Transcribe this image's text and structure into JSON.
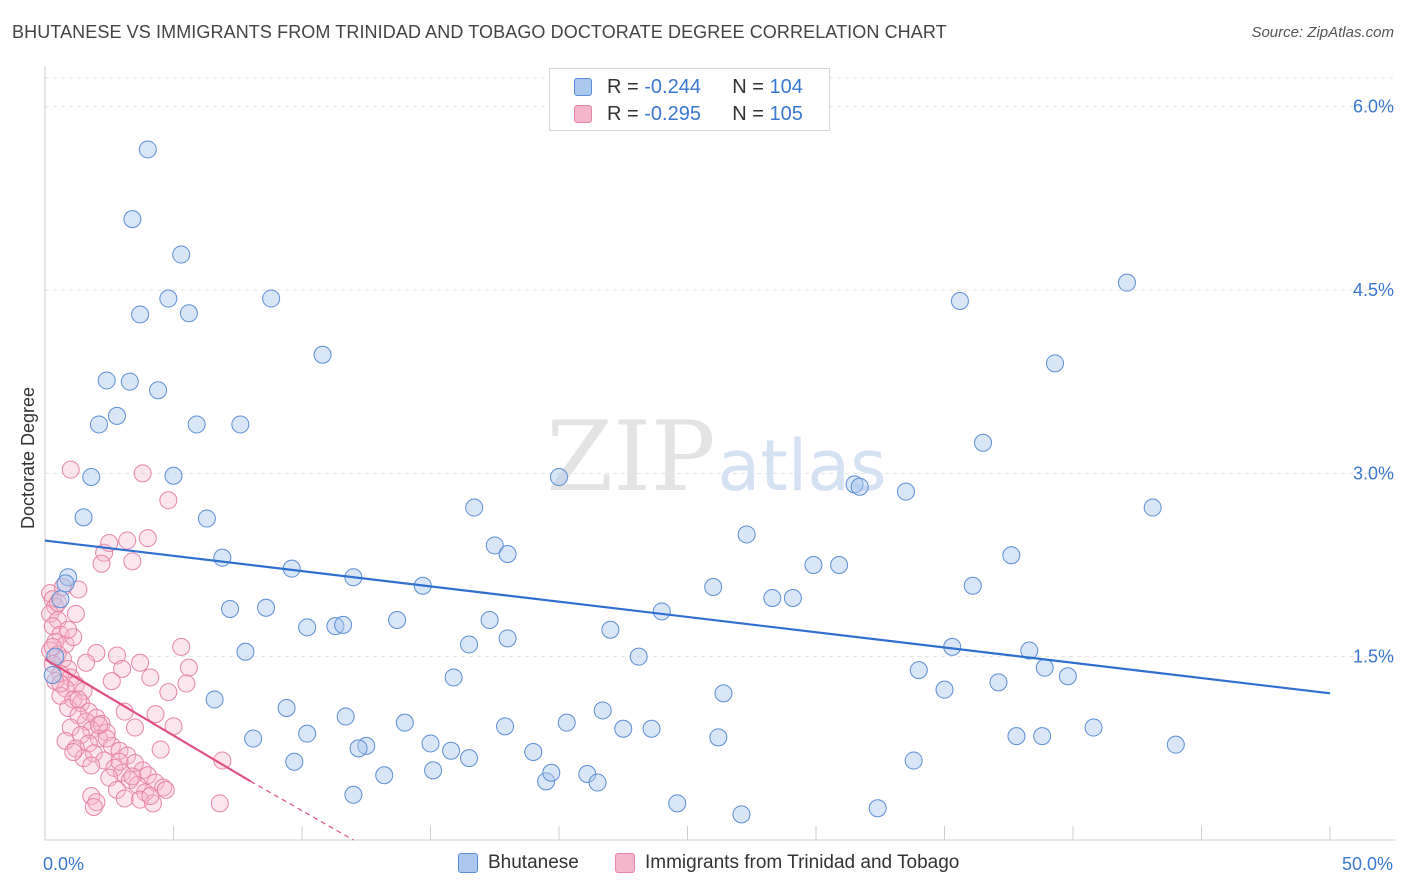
{
  "title": "BHUTANESE VS IMMIGRANTS FROM TRINIDAD AND TOBAGO DOCTORATE DEGREE CORRELATION CHART",
  "source": "Source: ZipAtlas.com",
  "watermark": {
    "zip": "ZIP",
    "atlas": "atlas"
  },
  "legend_top": {
    "rows": [
      {
        "r_label": "R =",
        "r_value": "-0.244",
        "n_label": "N =",
        "n_value": "104"
      },
      {
        "r_label": "R =",
        "r_value": "-0.295",
        "n_label": "N =",
        "n_value": "105"
      }
    ]
  },
  "legend_bottom": {
    "items": [
      "Bhutanese",
      "Immigrants from Trinidad and Tobago"
    ]
  },
  "colors": {
    "blue_fill": "#aac8ee",
    "blue_stroke": "#5b8fd4",
    "blue_line": "#2f6fcf",
    "pink_fill": "#f5b6cb",
    "pink_stroke": "#e785a8",
    "pink_line": "#e0517f",
    "axis_text_blue": "#3a78d0",
    "grid": "#e3e3e3"
  },
  "chart_data": {
    "type": "scatter",
    "title": "BHUTANESE VS IMMIGRANTS FROM TRINIDAD AND TOBAGO DOCTORATE DEGREE CORRELATION CHART",
    "xlabel": "",
    "ylabel": "Doctorate Degree",
    "xlim": [
      0,
      50
    ],
    "ylim": [
      0,
      6.3
    ],
    "x_tick_labels": [
      "0.0%",
      "50.0%"
    ],
    "y_ticks": [
      1.5,
      3.0,
      4.5,
      6.0
    ],
    "y_tick_labels": [
      "1.5%",
      "3.0%",
      "4.5%",
      "6.0%"
    ],
    "series": [
      {
        "name": "Bhutanese",
        "r": -0.244,
        "n": 104,
        "trend": {
          "x0": 0,
          "y0": 2.45,
          "x1": 50,
          "y1": 1.2
        },
        "points": [
          [
            4.0,
            5.65
          ],
          [
            3.4,
            5.08
          ],
          [
            5.3,
            4.79
          ],
          [
            4.8,
            4.43
          ],
          [
            3.7,
            4.3
          ],
          [
            5.6,
            4.31
          ],
          [
            8.8,
            4.43
          ],
          [
            10.8,
            3.97
          ],
          [
            3.3,
            3.75
          ],
          [
            2.4,
            3.76
          ],
          [
            4.4,
            3.68
          ],
          [
            2.8,
            3.47
          ],
          [
            2.1,
            3.4
          ],
          [
            5.9,
            3.4
          ],
          [
            7.6,
            3.4
          ],
          [
            1.8,
            2.97
          ],
          [
            5.0,
            2.98
          ],
          [
            1.5,
            2.64
          ],
          [
            6.3,
            2.63
          ],
          [
            0.9,
            2.15
          ],
          [
            6.9,
            2.31
          ],
          [
            9.6,
            2.22
          ],
          [
            12.0,
            2.15
          ],
          [
            7.2,
            1.89
          ],
          [
            8.6,
            1.9
          ],
          [
            10.2,
            1.74
          ],
          [
            11.3,
            1.75
          ],
          [
            11.6,
            1.76
          ],
          [
            13.7,
            1.8
          ],
          [
            14.7,
            2.08
          ],
          [
            16.7,
            2.72
          ],
          [
            17.5,
            2.41
          ],
          [
            18.0,
            2.34
          ],
          [
            17.3,
            1.8
          ],
          [
            16.5,
            1.6
          ],
          [
            18.0,
            1.65
          ],
          [
            20.0,
            2.97
          ],
          [
            22.0,
            1.72
          ],
          [
            23.1,
            1.5
          ],
          [
            24.0,
            1.87
          ],
          [
            7.8,
            1.54
          ],
          [
            15.9,
            1.33
          ],
          [
            6.6,
            1.15
          ],
          [
            9.4,
            1.08
          ],
          [
            11.7,
            1.01
          ],
          [
            14.0,
            0.96
          ],
          [
            12.5,
            0.77
          ],
          [
            12.2,
            0.75
          ],
          [
            13.2,
            0.53
          ],
          [
            12.0,
            0.37
          ],
          [
            10.2,
            0.87
          ],
          [
            9.7,
            0.64
          ],
          [
            8.1,
            0.83
          ],
          [
            15.1,
            0.57
          ],
          [
            15.0,
            0.79
          ],
          [
            15.8,
            0.73
          ],
          [
            16.5,
            0.67
          ],
          [
            17.9,
            0.93
          ],
          [
            19.0,
            0.72
          ],
          [
            19.5,
            0.48
          ],
          [
            19.7,
            0.55
          ],
          [
            20.3,
            0.96
          ],
          [
            21.1,
            0.54
          ],
          [
            21.5,
            0.47
          ],
          [
            21.7,
            1.06
          ],
          [
            22.5,
            0.91
          ],
          [
            23.6,
            0.91
          ],
          [
            24.6,
            0.3
          ],
          [
            26.2,
            0.84
          ],
          [
            27.1,
            0.21
          ],
          [
            26.4,
            1.2
          ],
          [
            27.3,
            2.5
          ],
          [
            28.3,
            1.98
          ],
          [
            29.1,
            1.98
          ],
          [
            29.9,
            2.25
          ],
          [
            30.9,
            2.25
          ],
          [
            26.0,
            2.07
          ],
          [
            31.5,
            2.91
          ],
          [
            31.7,
            2.89
          ],
          [
            33.5,
            2.85
          ],
          [
            32.4,
            0.26
          ],
          [
            33.8,
            0.65
          ],
          [
            34.0,
            1.39
          ],
          [
            35.0,
            1.23
          ],
          [
            35.3,
            1.58
          ],
          [
            35.6,
            4.41
          ],
          [
            36.1,
            2.08
          ],
          [
            36.5,
            3.25
          ],
          [
            37.1,
            1.29
          ],
          [
            37.8,
            0.85
          ],
          [
            37.6,
            2.33
          ],
          [
            38.8,
            0.85
          ],
          [
            38.3,
            1.55
          ],
          [
            38.9,
            1.41
          ],
          [
            39.3,
            3.9
          ],
          [
            39.8,
            1.34
          ],
          [
            40.8,
            0.92
          ],
          [
            42.1,
            4.56
          ],
          [
            43.1,
            2.72
          ],
          [
            44.0,
            0.78
          ],
          [
            0.6,
            1.97
          ],
          [
            0.3,
            1.35
          ],
          [
            0.4,
            1.5
          ],
          [
            0.8,
            2.1
          ]
        ]
      },
      {
        "name": "Immigrants from Trinidad and Tobago",
        "r": -0.295,
        "n": 105,
        "trend": {
          "x0": 0,
          "y0": 1.48,
          "x1": 8.0,
          "y1": 0.48,
          "dash_to_x": 12.0,
          "dash_to_y": 0.0
        },
        "points": [
          [
            0.2,
            2.02
          ],
          [
            0.3,
            1.97
          ],
          [
            0.4,
            1.91
          ],
          [
            0.2,
            1.85
          ],
          [
            0.5,
            1.8
          ],
          [
            0.3,
            1.75
          ],
          [
            0.6,
            1.68
          ],
          [
            0.4,
            1.62
          ],
          [
            0.8,
            1.6
          ],
          [
            0.2,
            1.55
          ],
          [
            0.5,
            1.52
          ],
          [
            0.7,
            1.48
          ],
          [
            0.3,
            1.44
          ],
          [
            0.9,
            1.4
          ],
          [
            0.6,
            1.36
          ],
          [
            1.0,
            1.33
          ],
          [
            0.4,
            1.3
          ],
          [
            1.2,
            1.27
          ],
          [
            0.8,
            1.24
          ],
          [
            1.5,
            1.22
          ],
          [
            0.6,
            1.18
          ],
          [
            1.1,
            1.15
          ],
          [
            1.4,
            1.12
          ],
          [
            0.9,
            1.08
          ],
          [
            1.7,
            1.05
          ],
          [
            1.3,
            1.02
          ],
          [
            2.0,
            1.0
          ],
          [
            1.6,
            0.97
          ],
          [
            2.2,
            0.95
          ],
          [
            1.0,
            0.92
          ],
          [
            1.8,
            0.9
          ],
          [
            2.4,
            0.88
          ],
          [
            1.4,
            0.86
          ],
          [
            2.1,
            0.83
          ],
          [
            0.8,
            0.81
          ],
          [
            1.7,
            0.79
          ],
          [
            2.6,
            0.77
          ],
          [
            1.2,
            0.75
          ],
          [
            2.9,
            0.73
          ],
          [
            1.9,
            0.71
          ],
          [
            3.2,
            0.69
          ],
          [
            1.5,
            0.67
          ],
          [
            2.3,
            0.65
          ],
          [
            3.5,
            0.63
          ],
          [
            1.8,
            0.61
          ],
          [
            2.7,
            0.59
          ],
          [
            3.8,
            0.57
          ],
          [
            3.0,
            0.55
          ],
          [
            4.0,
            0.53
          ],
          [
            2.5,
            0.51
          ],
          [
            3.3,
            0.49
          ],
          [
            4.3,
            0.47
          ],
          [
            3.6,
            0.45
          ],
          [
            4.6,
            0.43
          ],
          [
            2.8,
            0.41
          ],
          [
            3.9,
            0.39
          ],
          [
            1.8,
            0.36
          ],
          [
            3.1,
            0.34
          ],
          [
            3.7,
            0.33
          ],
          [
            2.0,
            0.31
          ],
          [
            4.2,
            0.3
          ],
          [
            6.8,
            0.3
          ],
          [
            1.9,
            0.27
          ],
          [
            2.3,
            2.35
          ],
          [
            2.5,
            2.43
          ],
          [
            2.2,
            2.26
          ],
          [
            3.2,
            2.45
          ],
          [
            3.4,
            2.28
          ],
          [
            4.0,
            2.47
          ],
          [
            3.8,
            3.0
          ],
          [
            1.0,
            3.03
          ],
          [
            4.8,
            2.78
          ],
          [
            1.3,
            2.05
          ],
          [
            1.2,
            1.85
          ],
          [
            1.1,
            1.66
          ],
          [
            2.0,
            1.53
          ],
          [
            2.8,
            1.51
          ],
          [
            3.0,
            1.4
          ],
          [
            3.7,
            1.45
          ],
          [
            4.1,
            1.33
          ],
          [
            5.3,
            1.58
          ],
          [
            5.6,
            1.41
          ],
          [
            5.5,
            1.28
          ],
          [
            4.8,
            1.21
          ],
          [
            5.0,
            0.93
          ],
          [
            4.3,
            1.03
          ],
          [
            4.5,
            0.74
          ],
          [
            6.9,
            0.65
          ],
          [
            0.7,
            2.07
          ],
          [
            0.5,
            1.94
          ],
          [
            0.9,
            1.72
          ],
          [
            0.3,
            1.58
          ],
          [
            1.6,
            1.45
          ],
          [
            2.6,
            1.3
          ],
          [
            3.1,
            1.05
          ],
          [
            3.5,
            0.92
          ],
          [
            2.4,
            0.83
          ],
          [
            4.7,
            0.41
          ],
          [
            0.6,
            1.28
          ],
          [
            1.3,
            1.15
          ],
          [
            2.1,
            0.94
          ],
          [
            2.9,
            0.64
          ],
          [
            3.4,
            0.52
          ],
          [
            4.1,
            0.36
          ],
          [
            1.1,
            0.72
          ]
        ]
      }
    ]
  }
}
